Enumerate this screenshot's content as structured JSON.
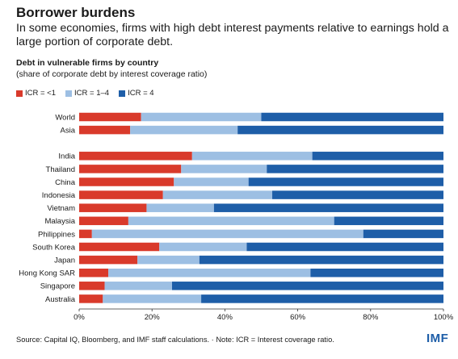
{
  "header": {
    "title": "Borrower burdens",
    "subtitle": "In some economies, firms with high debt interest payments relative to earnings hold a large portion of corporate debt."
  },
  "chart_data": {
    "type": "bar",
    "orientation": "horizontal",
    "stacked": true,
    "title": "Debt in vulnerable firms by country",
    "subtitle": "(share of corporate debt by interest coverage ratio)",
    "categories": [
      "World",
      "Asia",
      "",
      "India",
      "Thailand",
      "China",
      "Indonesia",
      "Vietnam",
      "Malaysia",
      "Philippines",
      "South Korea",
      "Japan",
      "Hong Kong SAR",
      "Singapore",
      "Australia"
    ],
    "series": [
      {
        "name": "ICR = <1",
        "color": "#d93a2b",
        "values": [
          17,
          14,
          null,
          31,
          28,
          26,
          23,
          18.5,
          13.5,
          3.5,
          22,
          16,
          8,
          7,
          6.5
        ]
      },
      {
        "name": "ICR = 1–4",
        "color": "#9dbfe3",
        "values": [
          33,
          29.5,
          null,
          33,
          23.5,
          20.5,
          30,
          18.5,
          56.5,
          74.5,
          24,
          17,
          55.5,
          18.5,
          27
        ]
      },
      {
        "name": "ICR = 4",
        "color": "#1e5ea8",
        "values": [
          50,
          56.5,
          null,
          36,
          48.5,
          53.5,
          47,
          63,
          30,
          22,
          54,
          67,
          36.5,
          74.5,
          66.5
        ]
      }
    ],
    "xlim": [
      0,
      100
    ],
    "xticks": [
      "0%",
      "20%",
      "40%",
      "60%",
      "80%",
      "100%"
    ],
    "grid": false,
    "legend": "top-left"
  },
  "footer": {
    "source": "Source: Capital IQ, Bloomberg, and IMF staff calculations. · Note: ICR = Interest coverage ratio.",
    "logo": "IMF"
  }
}
